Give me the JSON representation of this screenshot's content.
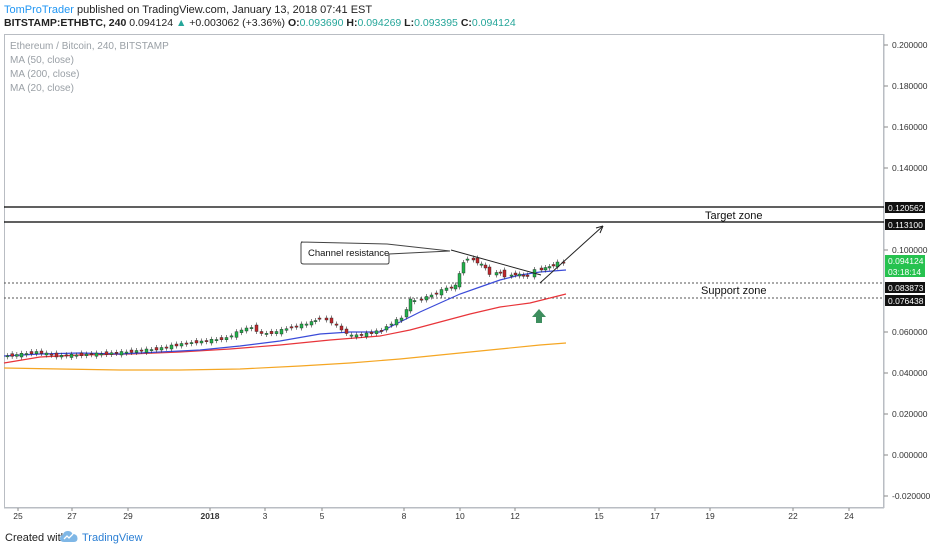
{
  "header": {
    "author": "TomProTrader",
    "published": "published on TradingView.com, January 13, 2018 07:41 EST",
    "symbol": "BITSTAMP:ETHBTC, 240",
    "price": "0.094124",
    "change_arrow": "▲",
    "change": "+0.003062 (+3.36%)",
    "o_label": "O:",
    "o_value": "0.093690",
    "h_label": "H:",
    "h_value": "0.094269",
    "l_label": "L:",
    "l_value": "0.093395",
    "c_label": "C:",
    "c_value": "0.094124"
  },
  "legend": {
    "title": "Ethereum / Bitcoin, 240, BITSTAMP",
    "ma1": "MA (50, close)",
    "ma2": "MA (200, close)",
    "ma3": "MA (20, close)"
  },
  "price_axis": {
    "ticks": [
      "0.200000",
      "0.180000",
      "0.160000",
      "0.140000",
      "0.100000",
      "0.060000",
      "0.040000",
      "0.020000",
      "0.000000",
      "-0.020000"
    ],
    "tick_values": [
      0.2,
      0.18,
      0.16,
      0.14,
      0.1,
      0.06,
      0.04,
      0.02,
      0.0,
      -0.02
    ],
    "labels": {
      "l1": "0.120562",
      "l2": "0.113100",
      "l3": "0.094124",
      "l4": "03:18:14",
      "l5": "0.083873",
      "l6": "0.076438"
    }
  },
  "time_axis": {
    "labels": [
      "25",
      "27",
      "29",
      "2018",
      "3",
      "5",
      "8",
      "10",
      "12",
      "15",
      "17",
      "19",
      "22",
      "24"
    ]
  },
  "annotations": {
    "target_zone": "Target zone",
    "support_zone": "Support zone",
    "channel_resistance": "Channel resistance"
  },
  "colors": {
    "ma20": "#3b4bd8",
    "ma50": "#e8353a",
    "ma200": "#f5a623",
    "up": "#26a69a",
    "down": "#d0383a",
    "up_candle": "#22b14c",
    "down_candle": "#c0282c",
    "arrow": "#3e8e5e",
    "last_price_bg": "#26c24f"
  },
  "footer": {
    "created_with": "Created with",
    "brand": "TradingView"
  }
}
